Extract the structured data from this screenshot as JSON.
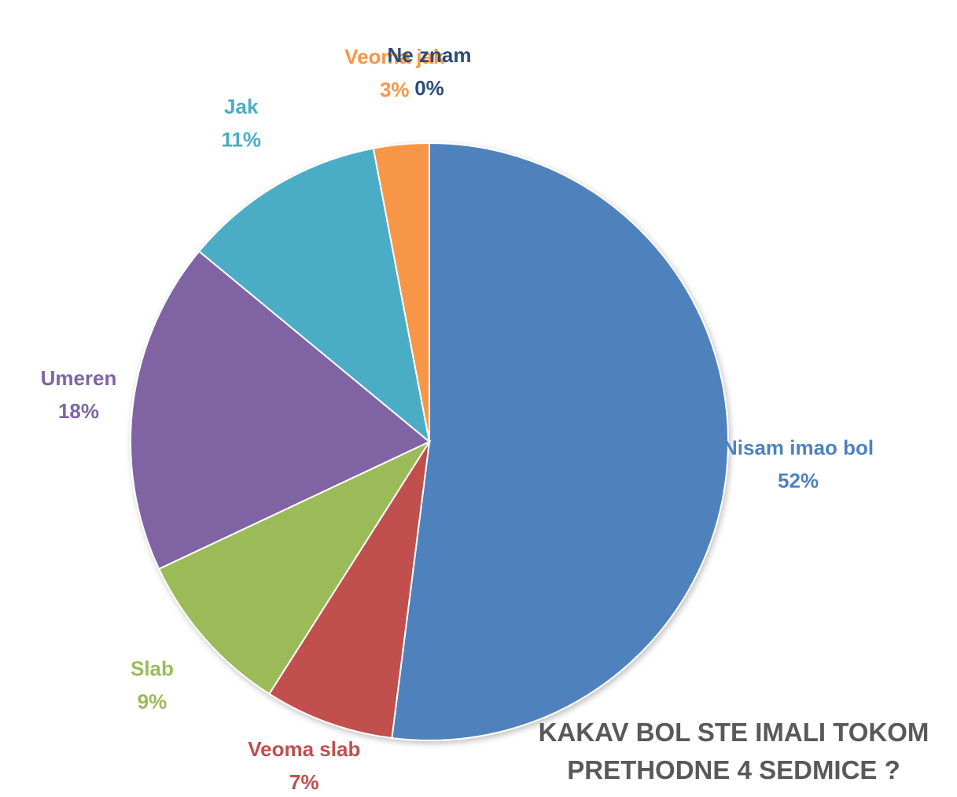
{
  "chart_data": {
    "type": "pie",
    "title": "KAKAV BOL STE IMALI TOKOM PRETHODNE 4 SEDMICE ?",
    "categories": [
      "Nisam imao bol",
      "Veoma slab",
      "Slab",
      "Umeren",
      "Jak",
      "Veoma jak",
      "Ne znam"
    ],
    "values": [
      52,
      7,
      9,
      18,
      11,
      3,
      0
    ],
    "value_labels": [
      "52%",
      "7%",
      "9%",
      "18%",
      "11%",
      "3%",
      "0%"
    ],
    "colors": [
      "#4f81bd",
      "#c0504d",
      "#9bbb59",
      "#8064a2",
      "#4bacc6",
      "#f79646",
      "#2c4d75"
    ]
  }
}
